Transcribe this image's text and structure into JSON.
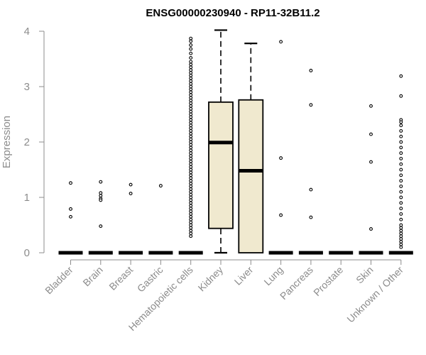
{
  "chart_data": {
    "type": "boxplot",
    "title": "ENSG00000230940 - RP11-32B11.2",
    "ylabel": "Expression",
    "ylim": [
      0,
      4
    ],
    "yticks": [
      "0",
      "1",
      "2",
      "3",
      "4"
    ],
    "categories": [
      "Bladder",
      "Brain",
      "Breast",
      "Gastric",
      "Hematopoietic cells",
      "Kidney",
      "Liver",
      "Lung",
      "Pancreas",
      "Prostate",
      "Skin",
      "Unknown / Other"
    ],
    "boxes": [
      {
        "category": "Bladder",
        "q1": 0,
        "median": 0,
        "q3": 0,
        "whisker_low": 0,
        "whisker_high": 0,
        "outliers": [
          1.26,
          0.79,
          0.65
        ]
      },
      {
        "category": "Brain",
        "q1": 0,
        "median": 0,
        "q3": 0,
        "whisker_low": 0,
        "whisker_high": 0,
        "outliers": [
          1.28,
          1.08,
          1.03,
          0.98,
          0.95,
          0.48
        ]
      },
      {
        "category": "Breast",
        "q1": 0,
        "median": 0,
        "q3": 0,
        "whisker_low": 0,
        "whisker_high": 0,
        "outliers": [
          1.23,
          1.07
        ]
      },
      {
        "category": "Gastric",
        "q1": 0,
        "median": 0,
        "q3": 0,
        "whisker_low": 0,
        "whisker_high": 0,
        "outliers": [
          1.21
        ]
      },
      {
        "category": "Hematopoietic cells",
        "q1": 0,
        "median": 0,
        "q3": 0,
        "whisker_low": 0,
        "whisker_high": 0,
        "outliers": [
          3.87,
          3.82,
          3.75,
          3.68,
          3.6,
          3.52,
          3.45,
          3.4,
          3.35,
          3.3,
          3.25,
          3.2,
          3.15,
          3.1,
          3.05,
          3.0,
          2.95,
          2.9,
          2.85,
          2.8,
          2.75,
          2.7,
          2.65,
          2.6,
          2.55,
          2.5,
          2.45,
          2.4,
          2.35,
          2.3,
          2.25,
          2.2,
          2.15,
          2.1,
          2.05,
          2.0,
          1.95,
          1.9,
          1.85,
          1.8,
          1.75,
          1.7,
          1.65,
          1.6,
          1.55,
          1.5,
          1.45,
          1.4,
          1.35,
          1.3,
          1.25,
          1.2,
          1.15,
          1.1,
          1.05,
          1.0,
          0.95,
          0.9,
          0.85,
          0.8,
          0.75,
          0.7,
          0.65,
          0.6,
          0.55,
          0.5,
          0.45,
          0.4,
          0.35,
          0.3
        ]
      },
      {
        "category": "Kidney",
        "q1": 0.44,
        "median": 1.99,
        "q3": 2.72,
        "whisker_low": 0,
        "whisker_high": 4.02,
        "outliers": []
      },
      {
        "category": "Liver",
        "q1": 0,
        "median": 1.48,
        "q3": 2.76,
        "whisker_low": 0,
        "whisker_high": 3.78,
        "outliers": []
      },
      {
        "category": "Lung",
        "q1": 0,
        "median": 0,
        "q3": 0,
        "whisker_low": 0,
        "whisker_high": 0,
        "outliers": [
          3.81,
          1.71,
          0.68
        ]
      },
      {
        "category": "Pancreas",
        "q1": 0,
        "median": 0,
        "q3": 0,
        "whisker_low": 0,
        "whisker_high": 0,
        "outliers": [
          3.29,
          2.67,
          1.14,
          0.64
        ]
      },
      {
        "category": "Prostate",
        "q1": 0,
        "median": 0,
        "q3": 0,
        "whisker_low": 0,
        "whisker_high": 0,
        "outliers": []
      },
      {
        "category": "Skin",
        "q1": 0,
        "median": 0,
        "q3": 0,
        "whisker_low": 0,
        "whisker_high": 0,
        "outliers": [
          2.65,
          2.14,
          1.64,
          0.43
        ]
      },
      {
        "category": "Unknown / Other",
        "q1": 0,
        "median": 0,
        "q3": 0,
        "whisker_low": 0,
        "whisker_high": 0,
        "outliers": [
          3.19,
          2.83,
          2.4,
          2.36,
          2.3,
          2.2,
          2.1,
          2.0,
          1.9,
          1.8,
          1.7,
          1.6,
          1.5,
          1.4,
          1.3,
          1.2,
          1.1,
          1.0,
          0.9,
          0.8,
          0.7,
          0.6,
          0.5,
          0.45,
          0.4,
          0.35,
          0.3,
          0.25,
          0.2,
          0.15,
          0.1
        ]
      }
    ],
    "box_fill": "#f0e9cf",
    "grid": false,
    "legend": "none"
  }
}
